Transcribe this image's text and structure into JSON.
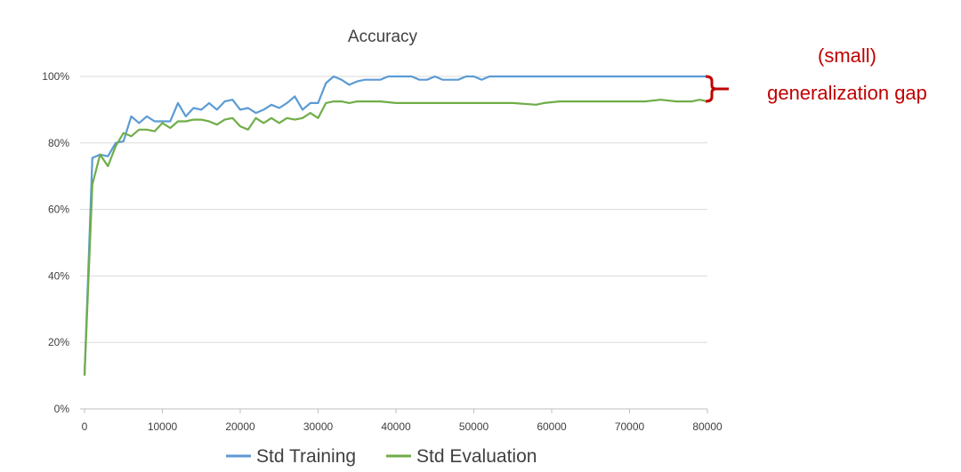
{
  "chart_data": {
    "type": "line",
    "title": "Accuracy",
    "xlabel": "",
    "ylabel": "",
    "xlim": [
      0,
      80000
    ],
    "ylim": [
      0,
      100
    ],
    "x_ticks": [
      "0",
      "10000",
      "20000",
      "30000",
      "40000",
      "50000",
      "60000",
      "70000",
      "80000"
    ],
    "y_ticks": [
      "0%",
      "20%",
      "40%",
      "60%",
      "80%",
      "100%"
    ],
    "grid": "horizontal",
    "legend": "bottom",
    "colors": {
      "Std Training": "#5b9bd5",
      "Std Evaluation": "#70ad47",
      "annotation": "#c00000"
    },
    "annotation": {
      "line1": "(small)",
      "line2": "generalization gap"
    },
    "series": [
      {
        "name": "Std Training",
        "x": [
          0,
          1000,
          2000,
          3000,
          4000,
          5000,
          6000,
          7000,
          8000,
          9000,
          10000,
          11000,
          12000,
          13000,
          14000,
          15000,
          16000,
          17000,
          18000,
          19000,
          20000,
          21000,
          22000,
          23000,
          24000,
          25000,
          26000,
          27000,
          28000,
          29000,
          30000,
          31000,
          32000,
          33000,
          34000,
          35000,
          36000,
          37000,
          38000,
          39000,
          40000,
          41000,
          42000,
          43000,
          44000,
          45000,
          46000,
          47000,
          48000,
          49000,
          50000,
          51000,
          52000,
          55000,
          60000,
          65000,
          70000,
          75000,
          80000
        ],
        "values": [
          10,
          75.5,
          76.5,
          76,
          80,
          80.5,
          88,
          86,
          88,
          86.5,
          86.5,
          86.5,
          92,
          88,
          90.5,
          90,
          92,
          90,
          92.5,
          93,
          90,
          90.5,
          89,
          90,
          91.5,
          90.5,
          92,
          94,
          90,
          92,
          92,
          98,
          100,
          99,
          97.5,
          98.5,
          99,
          99,
          99,
          100,
          100,
          100,
          100,
          99,
          99,
          100,
          99,
          99,
          99,
          100,
          100,
          99,
          100,
          100,
          100,
          100,
          100,
          100,
          100
        ]
      },
      {
        "name": "Std Evaluation",
        "x": [
          0,
          1000,
          2000,
          3000,
          4000,
          5000,
          6000,
          7000,
          8000,
          9000,
          10000,
          11000,
          12000,
          13000,
          14000,
          15000,
          16000,
          17000,
          18000,
          19000,
          20000,
          21000,
          22000,
          23000,
          24000,
          25000,
          26000,
          27000,
          28000,
          29000,
          30000,
          31000,
          32000,
          33000,
          34000,
          35000,
          36000,
          38000,
          40000,
          42000,
          44000,
          46000,
          48000,
          50000,
          52000,
          55000,
          58000,
          59000,
          61000,
          65000,
          70000,
          72000,
          74000,
          76000,
          78000,
          79000,
          80000
        ],
        "values": [
          10,
          67.5,
          76.5,
          73,
          79,
          83,
          82,
          84,
          84,
          83.5,
          86,
          84.5,
          86.5,
          86.5,
          87,
          87,
          86.5,
          85.5,
          87,
          87.5,
          85,
          84,
          87.5,
          86,
          87.5,
          86,
          87.5,
          87,
          87.5,
          89,
          87.5,
          92,
          92.5,
          92.5,
          92,
          92.5,
          92.5,
          92.5,
          92,
          92,
          92,
          92,
          92,
          92,
          92,
          92,
          91.5,
          92,
          92.5,
          92.5,
          92.5,
          92.5,
          93,
          92.5,
          92.5,
          93,
          92.5
        ]
      }
    ]
  }
}
